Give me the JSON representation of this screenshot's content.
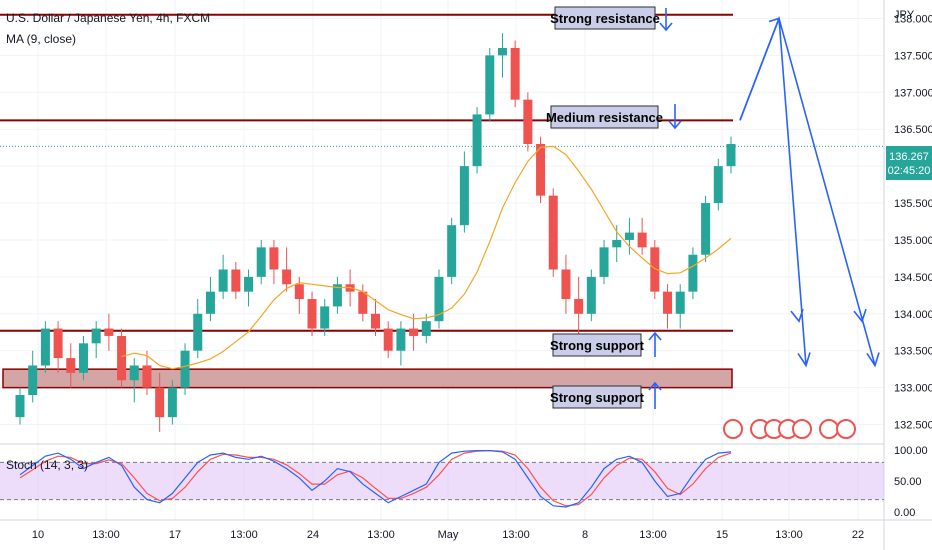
{
  "header": {
    "symbol_title": "U.S. Dollar / Japanese Yen, 4h, FXCM",
    "ma_label": "MA (9, close)",
    "stoch_label": "Stoch (14, 3, 3)",
    "currency_label": "JPY"
  },
  "price_badge": {
    "price": "136.267",
    "countdown": "02:45:20",
    "color": "#26a69a"
  },
  "annotations": {
    "strong_resistance": "Strong resistance",
    "medium_resistance": "Medium resistance",
    "strong_support_1": "Strong support",
    "strong_support_2": "Strong support"
  },
  "colors": {
    "up": "#26a69a",
    "down": "#ef5350",
    "ma": "#f5a623",
    "level_line": "#8b0000",
    "zone_fill": "#d4a5a5",
    "projection": "#2962ff",
    "stoch_k": "#2962ff",
    "stoch_d": "#ff5252",
    "stoch_band": "#e1c4f7"
  },
  "chart_data": {
    "type": "candlestick",
    "title": "U.S. Dollar / Japanese Yen, 4h, FXCM",
    "price_axis": {
      "ticks": [
        "138.000",
        "137.500",
        "137.000",
        "136.500",
        "136.000",
        "135.500",
        "135.000",
        "134.500",
        "134.000",
        "133.500",
        "133.000",
        "132.500"
      ],
      "ylim": [
        132.25,
        138.25
      ]
    },
    "time_axis": {
      "ticks": [
        "10",
        "13:00",
        "17",
        "13:00",
        "24",
        "13:00",
        "May",
        "13:00",
        "8",
        "13:00",
        "15",
        "13:00",
        "22"
      ]
    },
    "levels": {
      "strong_resistance": 138.05,
      "medium_resistance": 136.62,
      "strong_support": 133.77,
      "support_zone": [
        133.0,
        133.25
      ]
    },
    "candles": [
      [
        132.6,
        133.0,
        132.5,
        132.9
      ],
      [
        132.9,
        133.5,
        132.8,
        133.3
      ],
      [
        133.3,
        133.9,
        133.2,
        133.8
      ],
      [
        133.8,
        133.9,
        133.2,
        133.4
      ],
      [
        133.4,
        133.6,
        133.0,
        133.2
      ],
      [
        133.2,
        133.7,
        133.1,
        133.6
      ],
      [
        133.6,
        133.9,
        133.4,
        133.8
      ],
      [
        133.8,
        134.0,
        133.5,
        133.7
      ],
      [
        133.7,
        133.8,
        133.0,
        133.1
      ],
      [
        133.1,
        133.4,
        132.8,
        133.3
      ],
      [
        133.3,
        133.5,
        132.9,
        133.0
      ],
      [
        133.0,
        133.2,
        132.4,
        132.6
      ],
      [
        132.6,
        133.1,
        132.5,
        133.0
      ],
      [
        133.0,
        133.6,
        132.9,
        133.5
      ],
      [
        133.5,
        134.2,
        133.4,
        134.0
      ],
      [
        134.0,
        134.5,
        133.9,
        134.3
      ],
      [
        134.3,
        134.8,
        134.2,
        134.6
      ],
      [
        134.6,
        134.7,
        134.2,
        134.3
      ],
      [
        134.3,
        134.6,
        134.1,
        134.5
      ],
      [
        134.5,
        135.0,
        134.4,
        134.9
      ],
      [
        134.9,
        135.0,
        134.4,
        134.6
      ],
      [
        134.6,
        134.9,
        134.3,
        134.4
      ],
      [
        134.4,
        134.5,
        134.0,
        134.2
      ],
      [
        134.2,
        134.3,
        133.7,
        133.8
      ],
      [
        133.8,
        134.2,
        133.7,
        134.1
      ],
      [
        134.1,
        134.5,
        134.0,
        134.4
      ],
      [
        134.4,
        134.6,
        134.1,
        134.3
      ],
      [
        134.3,
        134.4,
        133.9,
        134.0
      ],
      [
        134.0,
        134.2,
        133.7,
        133.8
      ],
      [
        133.8,
        133.9,
        133.4,
        133.5
      ],
      [
        133.5,
        133.9,
        133.3,
        133.8
      ],
      [
        133.8,
        134.0,
        133.5,
        133.7
      ],
      [
        133.7,
        134.0,
        133.6,
        133.9
      ],
      [
        133.9,
        134.6,
        133.8,
        134.5
      ],
      [
        134.5,
        135.3,
        134.4,
        135.2
      ],
      [
        135.2,
        136.2,
        135.1,
        136.0
      ],
      [
        136.0,
        136.8,
        135.9,
        136.7
      ],
      [
        136.7,
        137.6,
        136.6,
        137.5
      ],
      [
        137.5,
        137.8,
        137.2,
        137.6
      ],
      [
        137.6,
        137.7,
        136.8,
        136.9
      ],
      [
        136.9,
        137.0,
        136.2,
        136.3
      ],
      [
        136.3,
        136.4,
        135.5,
        135.6
      ],
      [
        135.6,
        135.7,
        134.5,
        134.6
      ],
      [
        134.6,
        134.8,
        134.0,
        134.2
      ],
      [
        134.2,
        134.5,
        133.6,
        134.0
      ],
      [
        134.0,
        134.6,
        133.9,
        134.5
      ],
      [
        134.5,
        135.0,
        134.4,
        134.9
      ],
      [
        134.9,
        135.2,
        134.7,
        135.0
      ],
      [
        135.0,
        135.3,
        134.8,
        135.1
      ],
      [
        135.1,
        135.3,
        134.8,
        134.9
      ],
      [
        134.9,
        135.0,
        134.2,
        134.3
      ],
      [
        134.3,
        134.4,
        133.8,
        134.0
      ],
      [
        134.0,
        134.4,
        133.8,
        134.3
      ],
      [
        134.3,
        134.9,
        134.2,
        134.8
      ],
      [
        134.8,
        135.6,
        134.7,
        135.5
      ],
      [
        135.5,
        136.1,
        135.4,
        136.0
      ],
      [
        136.0,
        136.4,
        135.9,
        136.3
      ]
    ],
    "ma_period": 9,
    "projections": [
      {
        "name": "path-a",
        "points": [
          [
            "start",
            136.62
          ],
          [
            "peak",
            138.0
          ],
          [
            "end",
            133.3
          ]
        ]
      },
      {
        "name": "path-b",
        "points": [
          [
            "start",
            136.62
          ],
          [
            "peak",
            138.0
          ],
          [
            "end",
            133.3
          ]
        ]
      }
    ],
    "stochastic": {
      "label": "Stoch (14, 3, 3)",
      "ticks": [
        "100.00",
        "50.00",
        "0.00"
      ],
      "upper_band": 80,
      "lower_band": 20,
      "k": [
        60,
        75,
        90,
        95,
        85,
        70,
        80,
        88,
        75,
        40,
        20,
        15,
        30,
        55,
        80,
        92,
        95,
        88,
        85,
        90,
        82,
        70,
        55,
        35,
        50,
        70,
        65,
        45,
        30,
        15,
        25,
        35,
        45,
        80,
        95,
        98,
        99,
        99,
        97,
        85,
        55,
        25,
        10,
        8,
        15,
        40,
        70,
        85,
        90,
        80,
        50,
        25,
        30,
        60,
        85,
        95,
        97
      ],
      "d": [
        55,
        68,
        82,
        90,
        88,
        78,
        78,
        84,
        78,
        55,
        30,
        18,
        22,
        40,
        65,
        85,
        93,
        92,
        88,
        88,
        85,
        76,
        62,
        45,
        45,
        60,
        66,
        55,
        38,
        22,
        22,
        30,
        40,
        60,
        85,
        95,
        98,
        99,
        98,
        92,
        70,
        40,
        18,
        10,
        12,
        28,
        55,
        75,
        87,
        85,
        65,
        38,
        28,
        45,
        70,
        88,
        95
      ]
    }
  }
}
